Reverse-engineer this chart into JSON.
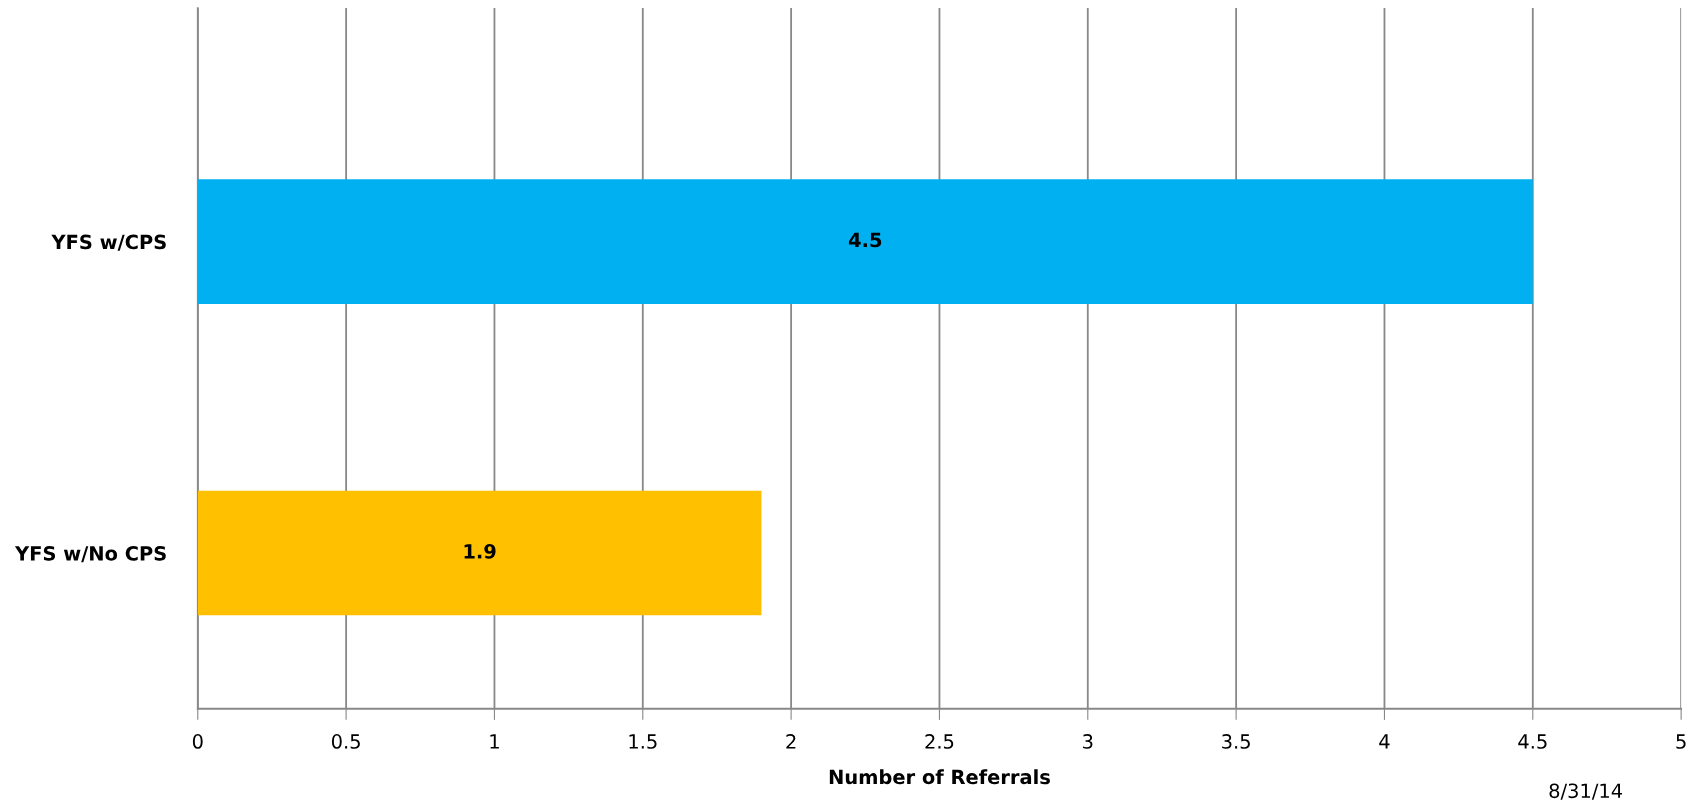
{
  "chart_data": {
    "type": "bar",
    "orientation": "horizontal",
    "categories": [
      "YFS w/CPS",
      "YFS w/No CPS"
    ],
    "values": [
      4.5,
      1.9
    ],
    "colors": [
      "#00b0f0",
      "#ffc000"
    ],
    "data_labels": true,
    "xlabel": "Number of Referrals",
    "xlim": [
      0,
      5
    ],
    "xticks": [
      0,
      0.5,
      1,
      1.5,
      2,
      2.5,
      3,
      3.5,
      4,
      4.5,
      5
    ],
    "grid": "x",
    "legend": false,
    "annotations": [
      "8/31/14"
    ]
  }
}
